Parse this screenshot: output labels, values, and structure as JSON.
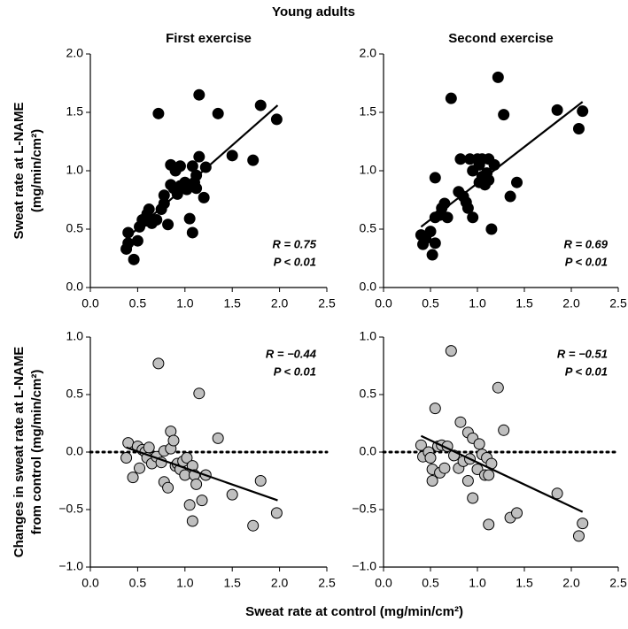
{
  "title": "Young adults",
  "xlabel": "Sweat rate at control (mg/min/cm²)",
  "chart_data": [
    {
      "type": "scatter",
      "title": "First exercise",
      "ylabel": [
        "Sweat rate at L-NAME",
        "(mg/min/cm²)"
      ],
      "x": [
        0.38,
        0.4,
        0.4,
        0.46,
        0.5,
        0.52,
        0.55,
        0.58,
        0.6,
        0.62,
        0.65,
        0.7,
        0.72,
        0.75,
        0.78,
        0.78,
        0.82,
        0.85,
        0.85,
        0.88,
        0.9,
        0.92,
        0.95,
        0.95,
        1.0,
        1.02,
        1.05,
        1.08,
        1.08,
        1.1,
        1.12,
        1.12,
        1.15,
        1.15,
        1.2,
        1.22,
        1.35,
        1.5,
        1.72,
        1.8,
        1.97
      ],
      "y": [
        0.33,
        0.38,
        0.47,
        0.24,
        0.4,
        0.52,
        0.58,
        0.57,
        0.63,
        0.67,
        0.55,
        0.58,
        1.49,
        0.67,
        0.72,
        0.79,
        0.54,
        0.88,
        1.05,
        0.85,
        1.0,
        0.8,
        1.04,
        0.87,
        0.9,
        0.84,
        0.59,
        0.47,
        1.04,
        0.9,
        0.96,
        0.85,
        1.65,
        1.12,
        0.77,
        1.03,
        1.49,
        1.13,
        1.09,
        1.56,
        1.44
      ],
      "color": "#000000",
      "fit": {
        "x": [
          0.38,
          1.98
        ],
        "y": [
          0.42,
          1.56
        ]
      },
      "annotations": [
        "R = 0.75",
        "P < 0.01"
      ],
      "annotation_corner": "lower right",
      "xlim": [
        0,
        2.5
      ],
      "ylim": [
        0,
        2
      ],
      "xticks": [
        {
          "value": 0,
          "label": "0.0"
        },
        0.5,
        {
          "value": 1,
          "label": "1.0"
        },
        1.5,
        {
          "value": 2,
          "label": "2.0"
        },
        2.5
      ],
      "yticks": [
        {
          "value": 0,
          "label": "0.0"
        },
        0.5,
        {
          "value": 1,
          "label": "1.0"
        },
        1.5,
        {
          "value": 2,
          "label": "2.0"
        }
      ]
    },
    {
      "type": "scatter",
      "title": "Second exercise",
      "x": [
        0.4,
        0.42,
        0.45,
        0.5,
        0.52,
        0.55,
        0.55,
        0.55,
        0.6,
        0.62,
        0.65,
        0.68,
        0.72,
        0.8,
        0.82,
        0.85,
        0.88,
        0.9,
        0.92,
        0.95,
        0.95,
        1.0,
        1.02,
        1.02,
        1.05,
        1.05,
        1.08,
        1.1,
        1.12,
        1.12,
        1.15,
        1.18,
        1.22,
        1.28,
        1.35,
        1.42,
        1.85,
        2.08,
        2.12
      ],
      "y": [
        0.45,
        0.37,
        0.42,
        0.48,
        0.28,
        0.38,
        0.6,
        0.94,
        0.62,
        0.68,
        0.72,
        0.6,
        1.62,
        0.82,
        1.1,
        0.78,
        0.73,
        0.68,
        1.1,
        1.0,
        0.6,
        1.1,
        1.05,
        0.9,
        0.95,
        1.1,
        0.88,
        0.98,
        1.1,
        0.92,
        0.5,
        1.05,
        1.8,
        1.48,
        0.78,
        0.9,
        1.52,
        1.36,
        1.51
      ],
      "color": "#000000",
      "fit": {
        "x": [
          0.4,
          2.12
        ],
        "y": [
          0.52,
          1.59
        ]
      },
      "annotations": [
        "R = 0.69",
        "P < 0.01"
      ],
      "annotation_corner": "lower right",
      "xlim": [
        0,
        2.5
      ],
      "ylim": [
        0,
        2
      ],
      "xticks": [
        {
          "value": 0,
          "label": "0.0"
        },
        0.5,
        {
          "value": 1,
          "label": "1.0"
        },
        1.5,
        {
          "value": 2,
          "label": "2.0"
        },
        2.5
      ],
      "yticks": [
        {
          "value": 0,
          "label": "0.0"
        },
        0.5,
        {
          "value": 1,
          "label": "1.0"
        },
        1.5,
        {
          "value": 2,
          "label": "2.0"
        }
      ]
    },
    {
      "type": "scatter",
      "ylabel": [
        "Changes in sweat rate at L-NAME",
        "from control (mg/min/cm²)"
      ],
      "x": [
        0.38,
        0.4,
        0.45,
        0.5,
        0.52,
        0.55,
        0.58,
        0.6,
        0.62,
        0.65,
        0.7,
        0.72,
        0.75,
        0.78,
        0.78,
        0.82,
        0.85,
        0.85,
        0.88,
        0.9,
        0.92,
        0.95,
        0.98,
        1.0,
        1.02,
        1.05,
        1.08,
        1.08,
        1.1,
        1.12,
        1.15,
        1.18,
        1.22,
        1.35,
        1.5,
        1.72,
        1.8,
        1.97
      ],
      "y": [
        -0.05,
        0.08,
        -0.22,
        0.05,
        -0.14,
        0.02,
        0.0,
        -0.05,
        0.04,
        -0.1,
        -0.04,
        0.77,
        -0.09,
        -0.26,
        0.01,
        -0.31,
        0.18,
        0.03,
        0.1,
        -0.12,
        -0.1,
        -0.15,
        -0.08,
        -0.2,
        -0.05,
        -0.46,
        -0.6,
        -0.12,
        -0.2,
        -0.28,
        0.51,
        -0.42,
        -0.2,
        0.12,
        -0.37,
        -0.64,
        -0.25,
        -0.53
      ],
      "color": "#bfbfbf",
      "fit": {
        "x": [
          0.38,
          1.98
        ],
        "y": [
          0.04,
          -0.42
        ]
      },
      "reference_line": 0,
      "annotations": [
        "R = −0.44",
        "P < 0.01"
      ],
      "annotation_corner": "upper right",
      "xlim": [
        0,
        2.5
      ],
      "ylim": [
        -1,
        1
      ],
      "xticks": [
        {
          "value": 0,
          "label": "0.0"
        },
        0.5,
        {
          "value": 1,
          "label": "1.0"
        },
        1.5,
        {
          "value": 2,
          "label": "2.0"
        },
        2.5
      ],
      "yticks": [
        {
          "value": -1,
          "label": "−1.0"
        },
        {
          "value": -0.5,
          "label": "−0.5"
        },
        {
          "value": 0,
          "label": "0.0"
        },
        0.5,
        {
          "value": 1,
          "label": "1.0"
        }
      ]
    },
    {
      "type": "scatter",
      "x": [
        0.4,
        0.42,
        0.48,
        0.5,
        0.52,
        0.52,
        0.55,
        0.58,
        0.6,
        0.62,
        0.65,
        0.68,
        0.72,
        0.75,
        0.8,
        0.82,
        0.85,
        0.9,
        0.9,
        0.92,
        0.95,
        0.95,
        1.0,
        1.02,
        1.05,
        1.08,
        1.1,
        1.12,
        1.12,
        1.15,
        1.22,
        1.28,
        1.35,
        1.42,
        1.85,
        2.08,
        2.12
      ],
      "y": [
        0.06,
        -0.04,
        0.0,
        -0.05,
        -0.25,
        -0.15,
        0.38,
        0.05,
        -0.18,
        0.06,
        -0.14,
        0.05,
        0.88,
        -0.03,
        -0.14,
        0.26,
        -0.08,
        0.17,
        -0.25,
        -0.06,
        0.12,
        -0.4,
        -0.15,
        0.07,
        -0.02,
        -0.2,
        -0.05,
        -0.63,
        -0.2,
        -0.1,
        0.56,
        0.19,
        -0.57,
        -0.53,
        -0.36,
        -0.73,
        -0.62
      ],
      "color": "#bfbfbf",
      "fit": {
        "x": [
          0.4,
          2.12
        ],
        "y": [
          0.14,
          -0.52
        ]
      },
      "reference_line": 0,
      "annotations": [
        "R = −0.51",
        "P < 0.01"
      ],
      "annotation_corner": "upper right",
      "xlim": [
        0,
        2.5
      ],
      "ylim": [
        -1,
        1
      ],
      "xticks": [
        {
          "value": 0,
          "label": "0.0"
        },
        0.5,
        {
          "value": 1,
          "label": "1.0"
        },
        1.5,
        {
          "value": 2,
          "label": "2.0"
        },
        2.5
      ],
      "yticks": [
        {
          "value": -1,
          "label": "−1.0"
        },
        {
          "value": -0.5,
          "label": "−0.5"
        },
        {
          "value": 0,
          "label": "0.0"
        },
        0.5,
        {
          "value": 1,
          "label": "1.0"
        }
      ]
    }
  ]
}
